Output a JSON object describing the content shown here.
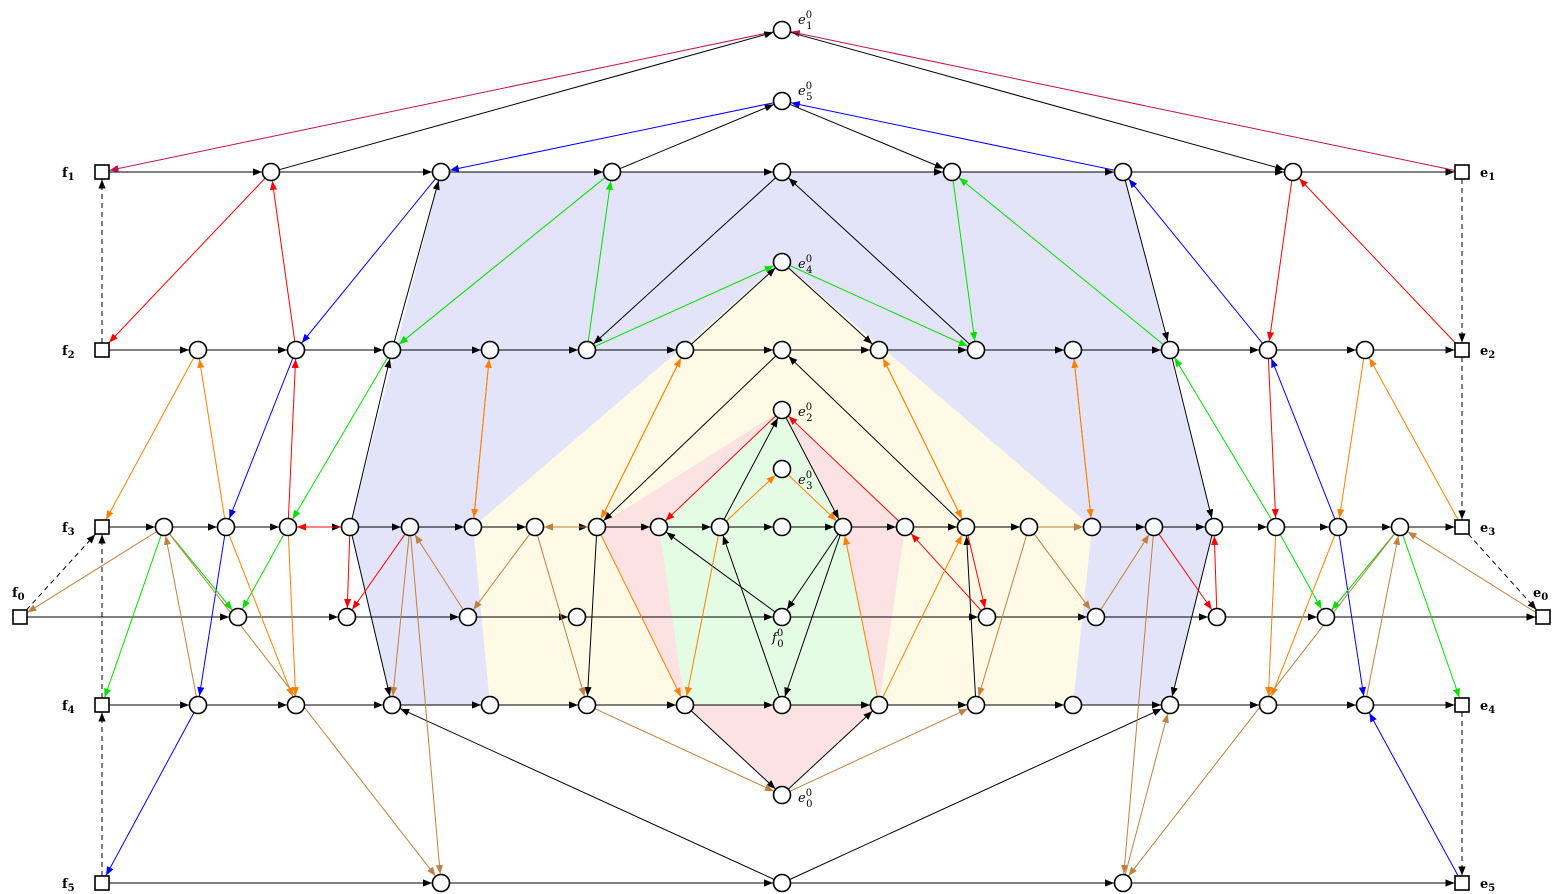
{
  "colors": {
    "black": "#000000",
    "red": "#ff0000",
    "blue": "#0000ff",
    "green": "#00e000",
    "orange": "#ff8000",
    "brown": "#bf8040",
    "crimson": "#c0104a",
    "region_blue": "#e3e4fa",
    "region_yellow": "#fefae6",
    "region_pink": "#fde2e3",
    "region_green": "#e4fbe4"
  },
  "labels": {
    "f0": {
      "base": "f",
      "sub": "0"
    },
    "f1": {
      "base": "f",
      "sub": "1"
    },
    "f2": {
      "base": "f",
      "sub": "2"
    },
    "f3": {
      "base": "f",
      "sub": "3"
    },
    "f4": {
      "base": "f",
      "sub": "4"
    },
    "f5": {
      "base": "f",
      "sub": "5"
    },
    "e0": {
      "base": "e",
      "sub": "0"
    },
    "e1": {
      "base": "e",
      "sub": "1"
    },
    "e2": {
      "base": "e",
      "sub": "2"
    },
    "e3": {
      "base": "e",
      "sub": "3"
    },
    "e4": {
      "base": "e",
      "sub": "4"
    },
    "e5": {
      "base": "e",
      "sub": "5"
    },
    "e1_0": {
      "base": "e",
      "sub": "1",
      "sup": "0"
    },
    "e5_0": {
      "base": "e",
      "sub": "5",
      "sup": "0"
    },
    "e4_0": {
      "base": "e",
      "sub": "4",
      "sup": "0"
    },
    "e2_0": {
      "base": "e",
      "sub": "2",
      "sup": "0"
    },
    "e3_0": {
      "base": "e",
      "sub": "3",
      "sup": "0"
    },
    "f0_0": {
      "base": "f",
      "sub": "0",
      "sup": "0"
    },
    "e0_0": {
      "base": "e",
      "sub": "0",
      "sup": "0"
    }
  }
}
